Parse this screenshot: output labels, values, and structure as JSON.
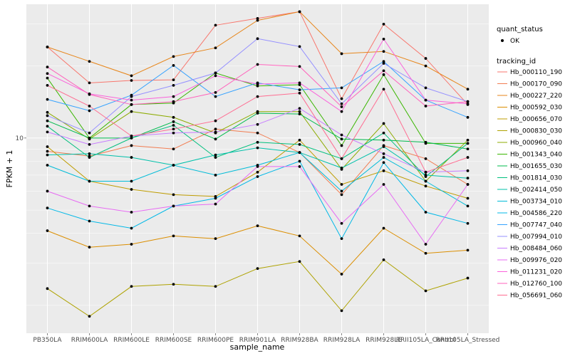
{
  "chart_data": {
    "type": "line",
    "xlabel": "sample_name",
    "ylabel": "FPKM + 1",
    "y_scale": "log10",
    "ylim": [
      1.53,
      36.2
    ],
    "y_ticks": [
      10
    ],
    "y_tick_labels": [
      "10"
    ],
    "grid": true,
    "legend_position": "right",
    "categories": [
      "PB350LA",
      "RRIM600LA",
      "RRIM600LE",
      "RRIM600SE",
      "RRIM600PE",
      "RRIM901LA",
      "RRIM928BA",
      "RRIM928LA",
      "RRIM928LE",
      "RRII105LA_Control",
      "RRII105LA_Stressed"
    ],
    "shape_legend": {
      "title": "quant_status",
      "items": [
        "OK"
      ]
    },
    "color_legend_title": "tracking_id",
    "series": [
      {
        "name": "Hb_000110_190",
        "color": "#F8766D",
        "values": [
          24.0,
          17.0,
          17.4,
          17.5,
          29.6,
          31.6,
          33.7,
          14.6,
          29.9,
          21.5,
          13.8
        ]
      },
      {
        "name": "Hb_000170_090",
        "color": "#F27D52",
        "values": [
          8.8,
          8.4,
          9.3,
          9.0,
          10.9,
          10.5,
          8.7,
          5.8,
          9.3,
          8.2,
          6.4
        ]
      },
      {
        "name": "Hb_000227_220",
        "color": "#E7861B",
        "values": [
          24.0,
          20.9,
          18.2,
          21.9,
          23.8,
          31.0,
          33.7,
          22.5,
          23.0,
          20.0,
          16.0
        ]
      },
      {
        "name": "Hb_000592_030",
        "color": "#DB8E00",
        "values": [
          4.1,
          3.5,
          3.6,
          3.9,
          3.8,
          4.3,
          3.9,
          2.7,
          4.2,
          3.3,
          3.4
        ]
      },
      {
        "name": "Hb_000656_070",
        "color": "#BE9C00",
        "values": [
          9.2,
          6.6,
          6.1,
          5.8,
          5.7,
          7.2,
          9.8,
          6.4,
          7.3,
          6.3,
          5.6
        ]
      },
      {
        "name": "Hb_000830_030",
        "color": "#AEA200",
        "values": [
          2.35,
          1.8,
          2.4,
          2.45,
          2.4,
          2.85,
          3.05,
          1.9,
          3.1,
          2.3,
          2.6
        ]
      },
      {
        "name": "Hb_000960_040",
        "color": "#8CAB00",
        "values": [
          12.8,
          9.9,
          12.9,
          12.2,
          10.5,
          12.9,
          12.9,
          7.4,
          11.5,
          6.6,
          9.8
        ]
      },
      {
        "name": "Hb_001343_040",
        "color": "#39B600",
        "values": [
          17.8,
          10.0,
          13.8,
          14.0,
          18.7,
          16.5,
          16.7,
          9.3,
          18.4,
          9.5,
          9.5
        ]
      },
      {
        "name": "Hb_001655_030",
        "color": "#00BB4E",
        "values": [
          11.8,
          10.0,
          10.0,
          11.7,
          9.9,
          12.7,
          12.6,
          9.9,
          9.8,
          9.6,
          9.0
        ]
      },
      {
        "name": "Hb_001814_030",
        "color": "#00BF7D",
        "values": [
          11.2,
          8.3,
          10.0,
          11.3,
          8.3,
          9.6,
          9.4,
          8.2,
          10.5,
          6.9,
          9.5
        ]
      },
      {
        "name": "Hb_002414_050",
        "color": "#00C0AA",
        "values": [
          8.5,
          8.6,
          8.3,
          7.7,
          8.5,
          9.1,
          8.7,
          7.5,
          9.2,
          7.0,
          6.8
        ]
      },
      {
        "name": "Hb_003734_010",
        "color": "#00BCD8",
        "values": [
          7.7,
          6.6,
          6.6,
          7.7,
          7.0,
          7.7,
          8.7,
          6.0,
          8.3,
          6.6,
          5.2
        ]
      },
      {
        "name": "Hb_004586_220",
        "color": "#00B8E7",
        "values": [
          5.1,
          4.5,
          4.2,
          5.2,
          5.6,
          6.9,
          8.0,
          3.8,
          7.9,
          4.9,
          4.4
        ]
      },
      {
        "name": "Hb_007747_040",
        "color": "#35A2FF",
        "values": [
          14.5,
          13.0,
          15.1,
          20.1,
          14.9,
          17.0,
          15.9,
          16.2,
          20.9,
          14.4,
          12.2
        ]
      },
      {
        "name": "Hb_007994_010",
        "color": "#9590FF",
        "values": [
          12.4,
          10.5,
          14.9,
          16.6,
          18.7,
          26.0,
          24.1,
          13.9,
          20.5,
          16.2,
          14.2
        ]
      },
      {
        "name": "Hb_008484_060",
        "color": "#C77CFF",
        "values": [
          10.6,
          9.4,
          10.2,
          10.5,
          10.6,
          11.4,
          13.3,
          10.3,
          8.6,
          7.2,
          7.3
        ]
      },
      {
        "name": "Hb_009976_020",
        "color": "#E76BF3",
        "values": [
          6.0,
          5.2,
          4.9,
          5.2,
          5.3,
          7.6,
          7.6,
          4.4,
          6.4,
          3.6,
          6.4
        ]
      },
      {
        "name": "Hb_011231_020",
        "color": "#FA62DB",
        "values": [
          18.6,
          15.3,
          14.4,
          14.9,
          18.2,
          16.8,
          17.0,
          12.9,
          25.9,
          14.4,
          13.9
        ]
      },
      {
        "name": "Hb_012760_100",
        "color": "#FF62BC",
        "values": [
          19.8,
          15.2,
          13.8,
          14.2,
          15.5,
          20.3,
          19.9,
          13.5,
          19.1,
          13.6,
          14.2
        ]
      },
      {
        "name": "Hb_056691_060",
        "color": "#FF6C91",
        "values": [
          16.6,
          13.6,
          10.2,
          10.9,
          11.8,
          14.9,
          15.4,
          8.2,
          16.0,
          7.2,
          8.3
        ]
      }
    ]
  }
}
